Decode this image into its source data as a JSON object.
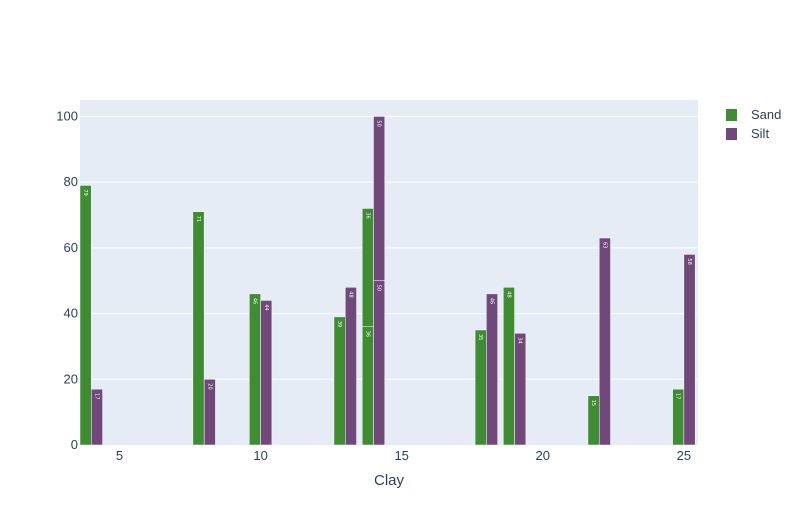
{
  "chart_data": {
    "type": "bar",
    "title": "",
    "xlabel": "Clay",
    "ylabel": "",
    "xlim": [
      3.6,
      25.5
    ],
    "ylim": [
      0,
      105
    ],
    "x_ticks": [
      5,
      10,
      15,
      20,
      25
    ],
    "y_ticks": [
      0,
      20,
      40,
      60,
      80,
      100
    ],
    "grid": true,
    "legend_position": "top-right",
    "barmode": "group",
    "series": [
      {
        "name": "Sand",
        "color": "#3f8c34",
        "points": [
          {
            "x": 4,
            "y": 79,
            "base": 0
          },
          {
            "x": 8,
            "y": 71,
            "base": 0
          },
          {
            "x": 10,
            "y": 46,
            "base": 0
          },
          {
            "x": 13,
            "y": 39,
            "base": 0
          },
          {
            "x": 14,
            "y": 36,
            "base": 0
          },
          {
            "x": 14,
            "y": 36,
            "base": 36
          },
          {
            "x": 18,
            "y": 35,
            "base": 0
          },
          {
            "x": 19,
            "y": 48,
            "base": 0
          },
          {
            "x": 22,
            "y": 15,
            "base": 0
          },
          {
            "x": 25,
            "y": 17,
            "base": 0
          }
        ]
      },
      {
        "name": "Silt",
        "color": "#70487a",
        "points": [
          {
            "x": 4,
            "y": 17,
            "base": 0
          },
          {
            "x": 8,
            "y": 20,
            "base": 0
          },
          {
            "x": 10,
            "y": 44,
            "base": 0
          },
          {
            "x": 13,
            "y": 48,
            "base": 0
          },
          {
            "x": 14,
            "y": 50,
            "base": 0
          },
          {
            "x": 14,
            "y": 50,
            "base": 50
          },
          {
            "x": 18,
            "y": 46,
            "base": 0
          },
          {
            "x": 19,
            "y": 34,
            "base": 0
          },
          {
            "x": 22,
            "y": 63,
            "base": 0
          },
          {
            "x": 25,
            "y": 58,
            "base": 0
          }
        ]
      }
    ]
  }
}
